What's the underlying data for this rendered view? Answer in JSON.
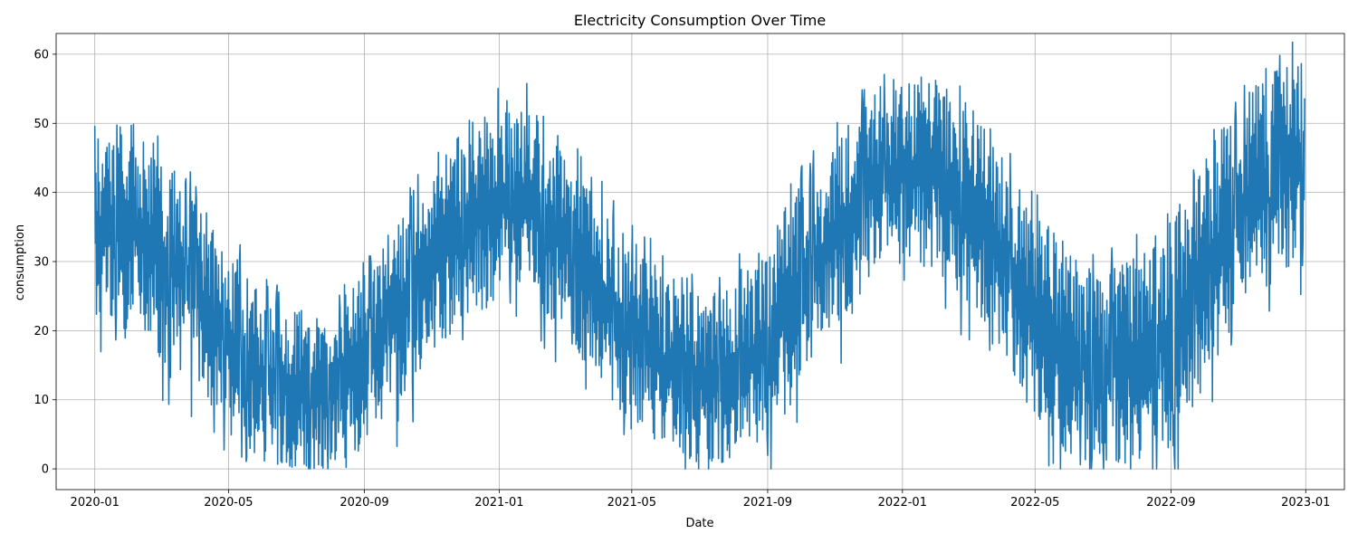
{
  "chart_data": {
    "type": "line",
    "title": "Electricity Consumption Over Time",
    "xlabel": "Date",
    "ylabel": "consumption",
    "x_range": [
      "2019-11-27",
      "2023-02-05"
    ],
    "ylim": [
      -3,
      63
    ],
    "x_ticks": [
      "2020-01",
      "2020-05",
      "2020-09",
      "2021-01",
      "2021-05",
      "2021-09",
      "2022-01",
      "2022-05",
      "2022-09",
      "2023-01"
    ],
    "y_ticks": [
      0,
      10,
      20,
      30,
      40,
      50,
      60
    ],
    "grid": true,
    "legend": "none",
    "series_color": "#1f77b4",
    "series": [
      {
        "x_start": "2020-01-01",
        "x_end": "2022-12-31",
        "x_step": "1 day",
        "envelope": {
          "dates": [
            "2020-01-01",
            "2020-02-01",
            "2020-03-01",
            "2020-04-01",
            "2020-05-01",
            "2020-06-01",
            "2020-07-01",
            "2020-08-01",
            "2020-09-01",
            "2020-10-01",
            "2020-11-01",
            "2020-12-01",
            "2021-01-01",
            "2021-02-01",
            "2021-03-01",
            "2021-04-01",
            "2021-05-01",
            "2021-06-01",
            "2021-07-01",
            "2021-08-01",
            "2021-09-01",
            "2021-10-01",
            "2021-11-01",
            "2021-12-01",
            "2022-01-01",
            "2022-02-01",
            "2022-03-01",
            "2022-04-01",
            "2022-05-01",
            "2022-06-01",
            "2022-07-01",
            "2022-08-01",
            "2022-09-01",
            "2022-10-01",
            "2022-11-01",
            "2022-12-01",
            "2022-12-31"
          ],
          "low": [
            22,
            20,
            16,
            11,
            5,
            1,
            0,
            0,
            2,
            9,
            16,
            22,
            24,
            24,
            20,
            12,
            5,
            1,
            0,
            0,
            3,
            11,
            19,
            26,
            29,
            28,
            24,
            16,
            7,
            2,
            0,
            0,
            3,
            12,
            22,
            27,
            30
          ],
          "high": [
            48,
            51,
            46,
            40,
            33,
            25,
            23,
            23,
            28,
            36,
            44,
            49,
            53,
            53,
            49,
            40,
            34,
            28,
            26,
            27,
            34,
            42,
            48,
            55,
            57,
            57,
            53,
            46,
            38,
            32,
            29,
            31,
            37,
            45,
            53,
            58,
            60
          ]
        }
      }
    ]
  }
}
